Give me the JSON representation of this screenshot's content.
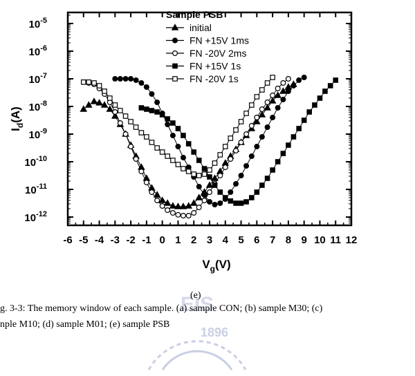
{
  "chart_data": {
    "type": "scatter",
    "title": "",
    "legend_title": "Sample PSB",
    "legend_placement": "top-center",
    "xlabel_main": "V",
    "xlabel_sub": "g",
    "xlabel_unit": "(V)",
    "ylabel_main": "I",
    "ylabel_sub": "d",
    "ylabel_unit": "(A)",
    "xlim": [
      -6,
      12
    ],
    "ylim_log10": [
      -12.3,
      -4.6
    ],
    "y_scale": "log",
    "grid": false,
    "x_ticks": [
      "-6",
      "-5",
      "-4",
      "-3",
      "-2",
      "-1",
      "0",
      "1",
      "2",
      "3",
      "4",
      "5",
      "6",
      "7",
      "8",
      "9",
      "10",
      "11",
      "12"
    ],
    "y_ticks": [
      {
        "base": "10",
        "exp": "-5",
        "value": -5
      },
      {
        "base": "10",
        "exp": "-6",
        "value": -6
      },
      {
        "base": "10",
        "exp": "-7",
        "value": -7
      },
      {
        "base": "10",
        "exp": "-8",
        "value": -8
      },
      {
        "base": "10",
        "exp": "-9",
        "value": -9
      },
      {
        "base": "10",
        "exp": "-10",
        "value": -10
      },
      {
        "base": "10",
        "exp": "-11",
        "value": -11
      },
      {
        "base": "10",
        "exp": "-12",
        "value": -12
      }
    ],
    "series": [
      {
        "name": "initial",
        "marker": "triangle-filled",
        "x": [
          -5.0,
          -4.67,
          -4.33,
          -4.0,
          -3.67,
          -3.33,
          -3.0,
          -2.67,
          -2.33,
          -2.0,
          -1.67,
          -1.33,
          -1.0,
          -0.67,
          -0.33,
          0.0,
          0.33,
          0.67,
          1.0,
          1.33,
          1.67,
          2.0,
          2.33,
          2.67,
          3.0,
          3.33,
          3.67,
          4.0,
          4.33,
          4.67,
          5.0,
          5.33,
          5.67,
          6.0,
          6.33,
          6.67,
          7.0,
          7.33,
          7.67,
          8.0,
          8.33
        ],
        "log10y": [
          -8.1,
          -7.95,
          -7.82,
          -7.87,
          -7.95,
          -8.1,
          -8.35,
          -8.65,
          -9.0,
          -9.4,
          -9.8,
          -10.2,
          -10.6,
          -10.95,
          -11.2,
          -11.4,
          -11.5,
          -11.6,
          -11.62,
          -11.62,
          -11.6,
          -11.5,
          -11.3,
          -11.1,
          -10.85,
          -10.6,
          -10.35,
          -10.05,
          -9.8,
          -9.55,
          -9.3,
          -9.05,
          -8.8,
          -8.55,
          -8.3,
          -8.05,
          -7.8,
          -7.6,
          -7.45,
          -7.3,
          -7.2
        ]
      },
      {
        "name": "FN +15V 1ms",
        "marker": "circle-filled",
        "x": [
          -3.0,
          -2.67,
          -2.33,
          -2.0,
          -1.67,
          -1.33,
          -1.0,
          -0.67,
          -0.33,
          0.0,
          0.33,
          0.67,
          1.0,
          1.33,
          1.67,
          2.0,
          2.33,
          2.67,
          3.0,
          3.33,
          3.67,
          4.0,
          4.33,
          4.67,
          5.0,
          5.33,
          5.67,
          6.0,
          6.33,
          6.67,
          7.0,
          7.33,
          7.67,
          8.0,
          8.33,
          8.67,
          9.0
        ],
        "log10y": [
          -7.0,
          -7.0,
          -7.0,
          -7.0,
          -7.05,
          -7.15,
          -7.3,
          -7.55,
          -7.85,
          -8.25,
          -8.65,
          -9.05,
          -9.45,
          -9.85,
          -10.2,
          -10.55,
          -10.9,
          -11.2,
          -11.45,
          -11.55,
          -11.5,
          -11.35,
          -11.1,
          -10.8,
          -10.5,
          -10.15,
          -9.8,
          -9.45,
          -9.1,
          -8.75,
          -8.4,
          -8.05,
          -7.75,
          -7.45,
          -7.25,
          -7.05,
          -6.95
        ]
      },
      {
        "name": "FN -20V 2ms",
        "marker": "circle-open",
        "x": [
          -4.67,
          -4.33,
          -4.0,
          -3.67,
          -3.33,
          -3.0,
          -2.67,
          -2.33,
          -2.0,
          -1.67,
          -1.33,
          -1.0,
          -0.67,
          -0.33,
          0.0,
          0.33,
          0.67,
          1.0,
          1.33,
          1.67,
          2.0,
          2.33,
          2.67,
          3.0,
          3.33,
          3.67,
          4.0,
          4.33,
          4.67,
          5.0,
          5.33,
          5.67,
          6.0,
          6.33,
          6.67,
          7.0,
          7.33,
          7.67,
          8.0
        ],
        "log10y": [
          -7.15,
          -7.2,
          -7.35,
          -7.55,
          -7.85,
          -8.2,
          -8.6,
          -9.0,
          -9.45,
          -9.9,
          -10.35,
          -10.75,
          -11.1,
          -11.4,
          -11.6,
          -11.75,
          -11.85,
          -11.92,
          -11.95,
          -11.95,
          -11.85,
          -11.65,
          -11.4,
          -11.1,
          -10.8,
          -10.5,
          -10.2,
          -9.9,
          -9.6,
          -9.3,
          -9.0,
          -8.7,
          -8.4,
          -8.1,
          -7.85,
          -7.6,
          -7.35,
          -7.15,
          -7.0
        ]
      },
      {
        "name": "FN +15V 1s",
        "marker": "square-filled",
        "x": [
          -1.33,
          -1.0,
          -0.67,
          -0.33,
          0.0,
          0.33,
          0.67,
          1.0,
          1.33,
          1.67,
          2.0,
          2.33,
          2.67,
          3.0,
          3.33,
          3.67,
          4.0,
          4.33,
          4.67,
          5.0,
          5.33,
          5.67,
          6.0,
          6.33,
          6.67,
          7.0,
          7.33,
          7.67,
          8.0,
          8.33,
          8.67,
          9.0,
          9.33,
          9.67,
          10.0,
          10.33,
          10.67,
          11.0
        ],
        "log10y": [
          -8.05,
          -8.1,
          -8.15,
          -8.2,
          -8.3,
          -8.45,
          -8.6,
          -8.8,
          -9.05,
          -9.35,
          -9.65,
          -9.95,
          -10.25,
          -10.55,
          -10.85,
          -11.1,
          -11.3,
          -11.42,
          -11.5,
          -11.5,
          -11.45,
          -11.3,
          -11.1,
          -10.85,
          -10.6,
          -10.3,
          -10.0,
          -9.7,
          -9.4,
          -9.1,
          -8.8,
          -8.5,
          -8.2,
          -7.95,
          -7.7,
          -7.45,
          -7.25,
          -7.05
        ]
      },
      {
        "name": "FN -20V 1s",
        "marker": "square-open",
        "x": [
          -5.0,
          -4.67,
          -4.33,
          -4.0,
          -3.67,
          -3.33,
          -3.0,
          -2.67,
          -2.33,
          -2.0,
          -1.67,
          -1.33,
          -1.0,
          -0.67,
          -0.33,
          0.0,
          0.33,
          0.67,
          1.0,
          1.33,
          1.67,
          2.0,
          2.33,
          2.67,
          3.0,
          3.33,
          3.67,
          4.0,
          4.33,
          4.67,
          5.0,
          5.33,
          5.67,
          6.0,
          6.33,
          6.67,
          7.0
        ],
        "log10y": [
          -7.12,
          -7.12,
          -7.15,
          -7.25,
          -7.45,
          -7.7,
          -7.95,
          -8.15,
          -8.35,
          -8.55,
          -8.75,
          -8.95,
          -9.1,
          -9.3,
          -9.5,
          -9.65,
          -9.8,
          -9.95,
          -10.1,
          -10.25,
          -10.35,
          -10.45,
          -10.5,
          -10.45,
          -10.3,
          -10.05,
          -9.75,
          -9.45,
          -9.15,
          -8.85,
          -8.55,
          -8.25,
          -7.95,
          -7.65,
          -7.4,
          -7.15,
          -6.95
        ]
      }
    ]
  },
  "figure": {
    "sub_label": "(e)",
    "caption_line1": "g. 3-3: The memory window of each sample. (a) sample CON; (b) sample M30; (c)",
    "caption_line2": "nple M10; (d) sample M01; (e) sample PSB"
  },
  "watermark": {
    "text_top": "EIS",
    "text_year": "1896",
    "color": "#8a93c4"
  }
}
